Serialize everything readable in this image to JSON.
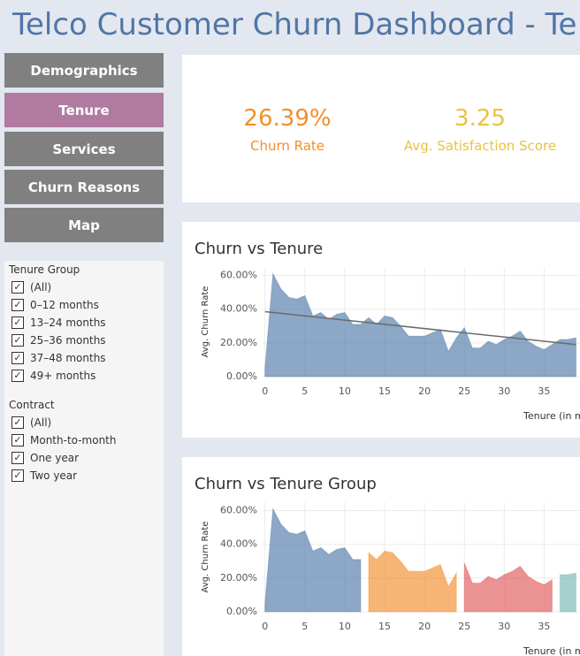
{
  "header": {
    "title": "Telco Customer Churn Dashboard - Te"
  },
  "nav": [
    "Demographics",
    "Tenure",
    "Services",
    "Churn Reasons",
    "Map"
  ],
  "filters": [
    {
      "title": "Tenure Group",
      "options": [
        "(All)",
        "0–12 months",
        "13–24 months",
        "25–36 months",
        "37–48 months",
        "49+ months"
      ]
    },
    {
      "title": "Contract",
      "options": [
        "(All)",
        "Month-to-month",
        "One year",
        "Two year"
      ]
    }
  ],
  "kpis": [
    {
      "value": "26.39%",
      "label": "Churn Rate",
      "color": "#f28e2b"
    },
    {
      "value": "3.25",
      "label": "Avg. Satisfaction Score",
      "color": "#e8c33f"
    }
  ],
  "chart_data": [
    {
      "type": "area",
      "title": "Churn vs Tenure",
      "y_label": "Avg. Churn Rate",
      "x_label": "Tenure (in m",
      "xlim": [
        -0.3,
        39.5
      ],
      "ylim": [
        0,
        65
      ],
      "grid": true,
      "xticks": [
        0,
        5,
        10,
        15,
        20,
        25,
        30,
        35
      ],
      "yticks": [
        {
          "value": 0,
          "label": "0.00%"
        },
        {
          "value": 20,
          "label": "20.00%"
        },
        {
          "value": 40,
          "label": "40.00%"
        },
        {
          "value": 60,
          "label": "60.00%"
        }
      ],
      "series": [
        {
          "color": "#4e79a7",
          "x": [
            0,
            1,
            2,
            3,
            4,
            5,
            6,
            7,
            8,
            9,
            10,
            11,
            12,
            13,
            14,
            15,
            16,
            17,
            18,
            19,
            20,
            21,
            22,
            23,
            24,
            25,
            26,
            27,
            28,
            29,
            30,
            31,
            32,
            33,
            34,
            35,
            36,
            37,
            38,
            39
          ],
          "values": [
            5,
            61,
            52,
            47,
            46,
            48,
            36,
            38,
            34,
            37,
            38,
            31,
            31,
            35,
            31,
            36,
            35,
            30,
            24,
            24,
            24,
            26,
            28,
            15,
            23,
            29,
            17,
            17,
            21,
            19,
            22,
            24,
            27,
            21,
            18,
            16,
            19,
            22,
            22,
            23
          ]
        }
      ],
      "trend": {
        "color": "#6b6b6b",
        "x": [
          0,
          39
        ],
        "values": [
          38.5,
          19
        ]
      }
    },
    {
      "type": "area",
      "title": "Churn vs Tenure Group",
      "y_label": "Avg. Churn Rate",
      "x_label": "Tenure (in m",
      "xlim": [
        -0.3,
        39.5
      ],
      "ylim": [
        0,
        65
      ],
      "grid": true,
      "xticks": [
        0,
        5,
        10,
        15,
        20,
        25,
        30,
        35
      ],
      "yticks": [
        {
          "value": 0,
          "label": "0.00%"
        },
        {
          "value": 20,
          "label": "20.00%"
        },
        {
          "value": 40,
          "label": "40.00%"
        },
        {
          "value": 60,
          "label": "60.00%"
        }
      ],
      "series": [
        {
          "color": "#4e79a7",
          "x": [
            0,
            1,
            2,
            3,
            4,
            5,
            6,
            7,
            8,
            9,
            10,
            11,
            12
          ],
          "values": [
            5,
            61,
            52,
            47,
            46,
            48,
            36,
            38,
            34,
            37,
            38,
            31,
            31
          ]
        },
        {
          "color": "#f28e2b",
          "x": [
            13,
            14,
            15,
            16,
            17,
            18,
            19,
            20,
            21,
            22,
            23,
            24
          ],
          "values": [
            35,
            31,
            36,
            35,
            30,
            24,
            24,
            24,
            26,
            28,
            15,
            23
          ]
        },
        {
          "color": "#e15759",
          "x": [
            25,
            26,
            27,
            28,
            29,
            30,
            31,
            32,
            33,
            34,
            35,
            36
          ],
          "values": [
            29,
            17,
            17,
            21,
            19,
            22,
            24,
            27,
            21,
            18,
            16,
            19
          ]
        },
        {
          "color": "#76b7b2",
          "x": [
            37,
            38,
            39
          ],
          "values": [
            22,
            22,
            23
          ]
        }
      ]
    }
  ]
}
